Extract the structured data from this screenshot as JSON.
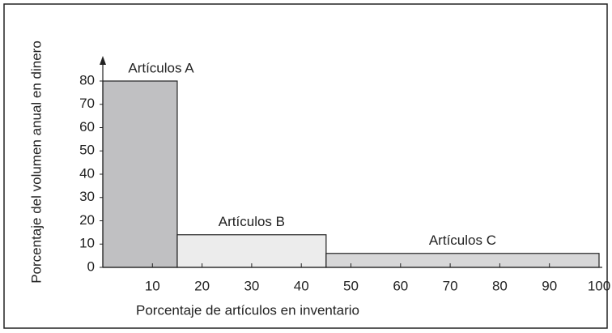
{
  "chart_data": {
    "type": "histogram",
    "xlabel": "Porcentaje de artículos en inventario",
    "ylabel": "Porcentaje del volumen anual en dinero",
    "bins": [
      0,
      15,
      45,
      100
    ],
    "values": [
      80,
      14,
      6
    ],
    "categories": [
      "Artículos A",
      "Artículos B",
      "Artículos C"
    ],
    "colors": [
      "#c0c0c2",
      "#ececec",
      "#d7d7d8"
    ],
    "xlim": [
      0,
      100
    ],
    "xticks": [
      10,
      20,
      30,
      40,
      50,
      60,
      70,
      80,
      90,
      100
    ],
    "ylim": [
      0,
      80
    ],
    "yticks": [
      0,
      10,
      20,
      30,
      40,
      50,
      60,
      70,
      80
    ]
  }
}
